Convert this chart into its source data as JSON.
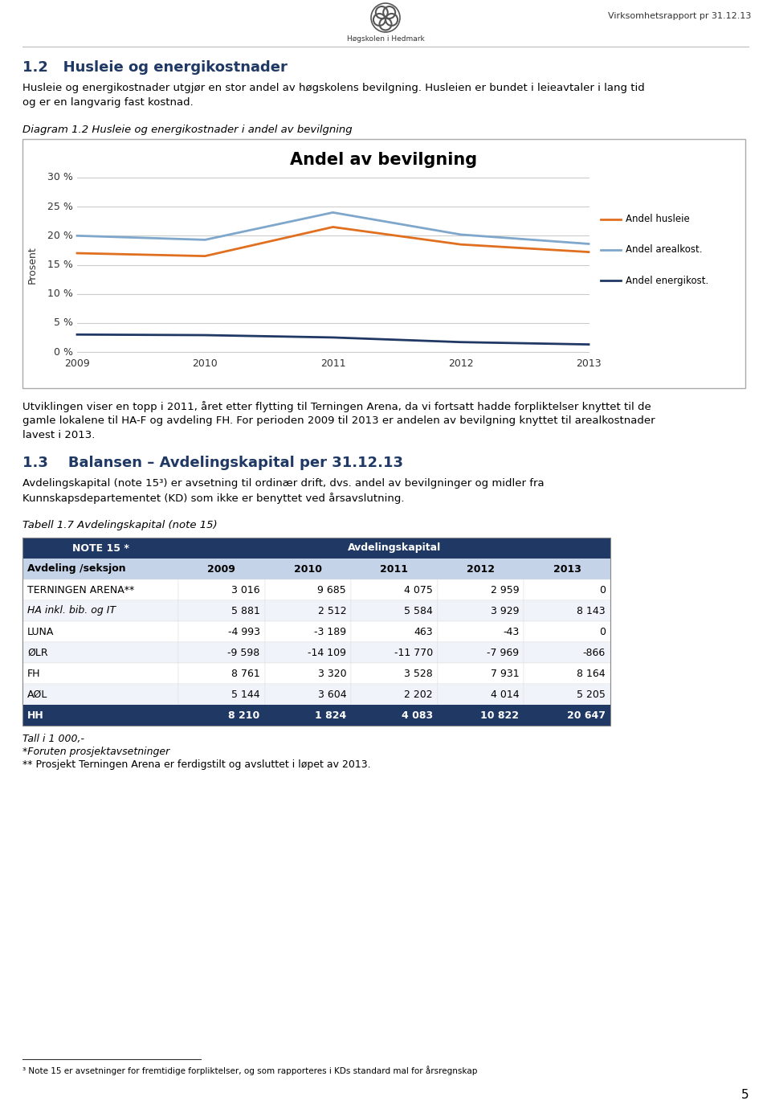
{
  "page_title_right": "Virksomhetsrapport pr 31.12.13",
  "section_heading": "1.2   Husleie og energikostnader",
  "para1_line1": "Husleie og energikostnader utgjør en stor andel av høgskolens bevilgning. Husleien er bundet i leieavtaler i lang tid",
  "para1_line2": "og er en langvarig fast kostnad.",
  "diagram_caption": "Diagram 1.2 Husleie og energikostnader i andel av bevilgning",
  "chart_title": "Andel av bevilgning",
  "years": [
    2009,
    2010,
    2011,
    2012,
    2013
  ],
  "andel_husleie": [
    0.17,
    0.165,
    0.215,
    0.185,
    0.172
  ],
  "andel_arealkost": [
    0.2,
    0.193,
    0.24,
    0.202,
    0.186
  ],
  "andel_energikost": [
    0.03,
    0.029,
    0.025,
    0.017,
    0.013
  ],
  "husleie_color": "#E07020",
  "arealkost_color": "#7FA7CC",
  "energikost_color": "#1F3864",
  "yticks": [
    0.0,
    0.05,
    0.1,
    0.15,
    0.2,
    0.25,
    0.3
  ],
  "ylabels": [
    "0 %",
    "5 %",
    "10 %",
    "15 %",
    "20 %",
    "25 %",
    "30 %"
  ],
  "ylabel_text": "Prosent",
  "legend_husleie": "Andel husleie",
  "legend_arealkost": "Andel arealkost.",
  "legend_energikost": "Andel energikost.",
  "para2_line1": "Utviklingen viser en topp i 2011, året etter flytting til Terningen Arena, da vi fortsatt hadde forpliktelser knyttet til de",
  "para2_line2": "gamle lokalene til HA-F og avdeling FH. For perioden 2009 til 2013 er andelen av bevilgning knyttet til arealkostnader",
  "para2_line3": "lavest i 2013.",
  "section2_heading": "1.3    Balansen – Avdelingskapital per 31.12.13",
  "para3_line1": "Avdelingskapital (note 15³) er avsetning til ordinær drift, dvs. andel av bevilgninger og midler fra",
  "para3_line2": "Kunnskapsdepartementet (KD) som ikke er benyttet ved årsavslutning.",
  "table_caption": "Tabell 1.7 Avdelingskapital (note 15)",
  "table_header1": "NOTE 15 *",
  "table_header2": "Avdelingskapital",
  "col_headers": [
    "Avdeling /seksjon",
    "2009",
    "2010",
    "2011",
    "2012",
    "2013"
  ],
  "table_rows": [
    [
      "TERNINGEN ARENA**",
      "3 016",
      "9 685",
      "4 075",
      "2 959",
      "0"
    ],
    [
      "HA inkl. bib. og IT",
      "5 881",
      "2 512",
      "5 584",
      "3 929",
      "8 143"
    ],
    [
      "LUNA",
      "-4 993",
      "-3 189",
      "463",
      "-43",
      "0"
    ],
    [
      "ØLR",
      "-9 598",
      "-14 109",
      "-11 770",
      "-7 969",
      "-866"
    ],
    [
      "FH",
      "8 761",
      "3 320",
      "3 528",
      "7 931",
      "8 164"
    ],
    [
      "AØL",
      "5 144",
      "3 604",
      "2 202",
      "4 014",
      "5 205"
    ]
  ],
  "table_total_row": [
    "HH",
    "8 210",
    "1 824",
    "4 083",
    "10 822",
    "20 647"
  ],
  "note1": "Tall i 1 000,-",
  "note2": "*Foruten prosjektavsetninger",
  "note3": "** Prosjekt Terningen Arena er ferdigstilt og avsluttet i løpet av 2013.",
  "footnote": "³ Note 15 er avsetninger for fremtidige forpliktelser, og som rapporteres i KDs standard mal for årsregnskap",
  "page_number": "5",
  "header_bg": "#1F3864",
  "subheader_bg": "#C5D3E8",
  "section_color": "#1F3864",
  "logo_text": "Høgskolen i Hedmark"
}
